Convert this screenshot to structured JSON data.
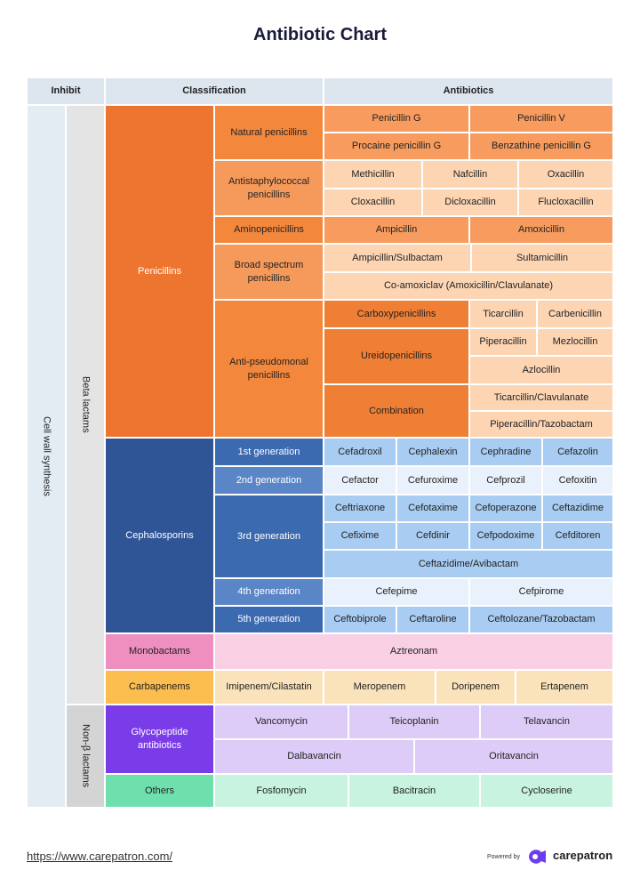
{
  "header": {
    "title": "Antibiotic Chart"
  },
  "table": {
    "columns": [
      "Inhibit",
      "Classification",
      "Antibiotics"
    ],
    "inhibit": "Cell wall synthesis",
    "groups": [
      "Beta lactams",
      "Non-β lactams"
    ],
    "classes": [
      "Penicillins",
      "Cephalosporins",
      "Monobactams",
      "Carbapenems",
      "Glycopeptide antibiotics",
      "Others"
    ],
    "subclasses": [
      "Natural penicillins",
      "Antistaphylococcal penicillins",
      "Aminopenicillins",
      "Broad spectrum penicillins",
      "Anti-pseudomonal penicillins",
      "1st generation",
      "2nd generation",
      "3rd generation",
      "4th generation",
      "5th generation"
    ],
    "subgroups": [
      "Carboxypenicillins",
      "Ureidopenicillins",
      "Combination"
    ],
    "antibiotics": [
      "Penicillin G",
      "Penicillin V",
      "Procaine penicillin G",
      "Benzathine penicillin G",
      "Methicillin",
      "Nafcillin",
      "Oxacillin",
      "Cloxacillin",
      "Dicloxacillin",
      "Flucloxacillin",
      "Ampicillin",
      "Amoxicillin",
      "Ampicillin/Sulbactam",
      "Sultamicillin",
      "Co-amoxiclav (Amoxicillin/Clavulanate)",
      "Ticarcillin",
      "Carbenicillin",
      "Piperacillin",
      "Mezlocillin",
      "Azlocillin",
      "Ticarcillin/Clavulanate",
      "Piperacillin/Tazobactam",
      "Cefadroxil",
      "Cephalexin",
      "Cephradine",
      "Cefazolin",
      "Cefactor",
      "Cefuroxime",
      "Cefprozil",
      "Cefoxitin",
      "Ceftriaxone",
      "Cefotaxime",
      "Cefoperazone",
      "Ceftazidime",
      "Cefixime",
      "Cefdinir",
      "Cefpodoxime",
      "Cefditoren",
      "Ceftazidime/Avibactam",
      "Cefepime",
      "Cefpirome",
      "Ceftobiprole",
      "Ceftaroline",
      "Ceftolozane/Tazobactam",
      "Aztreonam",
      "Imipenem/Cilastatin",
      "Meropenem",
      "Doripenem",
      "Ertapenem",
      "Vancomycin",
      "Teicoplanin",
      "Telavancin",
      "Dalbavancin",
      "Oritavancin",
      "Fosfomycin",
      "Bacitracin",
      "Cycloserine"
    ]
  },
  "footer": {
    "url": "https://www.carepatron.com/",
    "powered_by": "Powered by",
    "brand": "carepatron"
  }
}
